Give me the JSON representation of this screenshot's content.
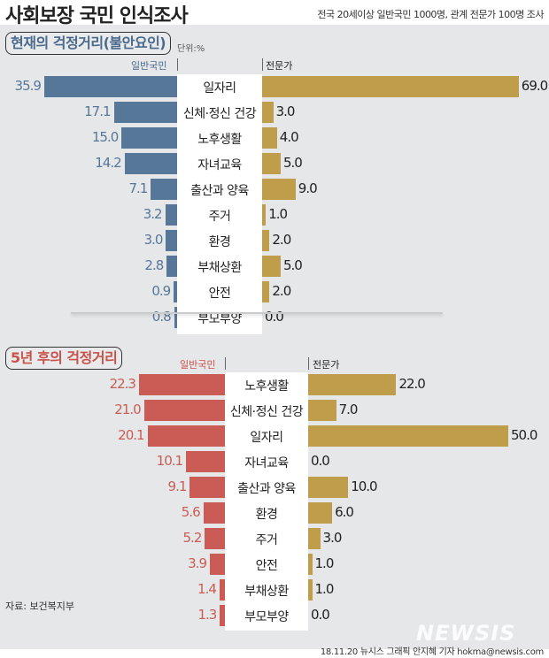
{
  "header": {
    "title": "사회보장 국민 인식조사",
    "subtitle": "전국 20세이상 일반국민 1000명, 관계 전문가 100명 조사"
  },
  "colors": {
    "public_current": "#567798",
    "public_future": "#cb5c55",
    "expert": "#bf9d4a",
    "background": "#e6e7e9",
    "current_title": "#4a6a8c",
    "future_title": "#c8514a"
  },
  "section1": {
    "title": "현재의 걱정거리(불안요인)",
    "unit": "단위:%",
    "left_header": "일반국민",
    "right_header": "전문가"
  },
  "section2": {
    "title": "5년 후의 걱정거리",
    "left_header": "일반국민",
    "right_header": "전문가"
  },
  "footer": {
    "source": "자료: 보건복지부",
    "credit": "18.11.20 뉴시스 그래픽 안지혜 기자 hokma@newsis.com",
    "logo": "NEWSIS"
  },
  "chart_data": [
    {
      "type": "bar",
      "orientation": "horizontal-diverging",
      "title": "현재의 걱정거리(불안요인)",
      "unit": "%",
      "categories": [
        "일자리",
        "신체·정신 건강",
        "노후생활",
        "자녀교육",
        "출산과 양육",
        "주거",
        "환경",
        "부채상환",
        "안전",
        "부모부양"
      ],
      "series": [
        {
          "name": "일반국민",
          "values": [
            35.9,
            17.1,
            15.0,
            14.2,
            7.1,
            3.2,
            3.0,
            2.8,
            0.9,
            0.8
          ]
        },
        {
          "name": "전문가",
          "values": [
            69.0,
            3.0,
            4.0,
            5.0,
            9.0,
            1.0,
            2.0,
            5.0,
            2.0,
            0.0
          ]
        }
      ]
    },
    {
      "type": "bar",
      "orientation": "horizontal-diverging",
      "title": "5년 후의 걱정거리",
      "unit": "%",
      "categories": [
        "노후생활",
        "신체·정신 건강",
        "일자리",
        "자녀교육",
        "출산과 양육",
        "환경",
        "주거",
        "안전",
        "부채상환",
        "부모부양"
      ],
      "series": [
        {
          "name": "일반국민",
          "values": [
            22.3,
            21.0,
            20.1,
            10.1,
            9.1,
            5.6,
            5.2,
            3.9,
            1.4,
            1.3
          ]
        },
        {
          "name": "전문가",
          "values": [
            22.0,
            7.0,
            50.0,
            0.0,
            10.0,
            6.0,
            3.0,
            1.0,
            1.0,
            0.0
          ]
        }
      ]
    }
  ],
  "rows1": [
    {
      "cat": "일자리",
      "l": "35.9",
      "r": "69.0"
    },
    {
      "cat": "신체·정신 건강",
      "l": "17.1",
      "r": "3.0"
    },
    {
      "cat": "노후생활",
      "l": "15.0",
      "r": "4.0"
    },
    {
      "cat": "자녀교육",
      "l": "14.2",
      "r": "5.0"
    },
    {
      "cat": "출산과 양육",
      "l": "7.1",
      "r": "9.0"
    },
    {
      "cat": "주거",
      "l": "3.2",
      "r": "1.0"
    },
    {
      "cat": "환경",
      "l": "3.0",
      "r": "2.0"
    },
    {
      "cat": "부채상환",
      "l": "2.8",
      "r": "5.0"
    },
    {
      "cat": "안전",
      "l": "0.9",
      "r": "2.0"
    },
    {
      "cat": "부모부양",
      "l": "0.8",
      "r": "0.0"
    }
  ],
  "rows2": [
    {
      "cat": "노후생활",
      "l": "22.3",
      "r": "22.0"
    },
    {
      "cat": "신체·정신 건강",
      "l": "21.0",
      "r": "7.0"
    },
    {
      "cat": "일자리",
      "l": "20.1",
      "r": "50.0"
    },
    {
      "cat": "자녀교육",
      "l": "10.1",
      "r": "0.0"
    },
    {
      "cat": "출산과 양육",
      "l": "9.1",
      "r": "10.0"
    },
    {
      "cat": "환경",
      "l": "5.6",
      "r": "6.0"
    },
    {
      "cat": "주거",
      "l": "5.2",
      "r": "3.0"
    },
    {
      "cat": "안전",
      "l": "3.9",
      "r": "1.0"
    },
    {
      "cat": "부채상환",
      "l": "1.4",
      "r": "1.0"
    },
    {
      "cat": "부모부양",
      "l": "1.3",
      "r": "0.0"
    }
  ]
}
